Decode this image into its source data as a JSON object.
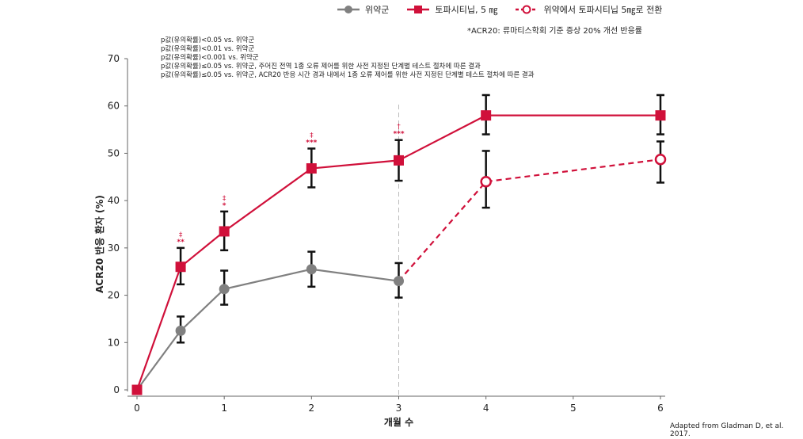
{
  "legend": {
    "placebo": "위약군",
    "tofa": "토파시티닙, 5 ㎎",
    "switch": "위약에서 토파시티닙 5㎎로 전환"
  },
  "acr_note": "*ACR20: 류마티스학회 기준 증상 20% 개선 반응률",
  "footnotes": [
    "p값(유의확률)<0.05 vs. 위약군",
    "p값(유의확률)<0.01 vs. 위약군",
    "p값(유의확률)<0.001 vs. 위약군",
    "p값(유의확률)≤0.05 vs. 위약군, 주어진 전역 1종 오류 제어를 위한 사전 지정된 단계별 테스트 절차에 따른 결과",
    "p값(유의확률)≤0.05 vs. 위약군, ACR20 반응 시간 경과 내에서 1종 오류 제어를 위한 사전 지정된 단계별 테스트 절차에 따른 결과"
  ],
  "source": "Adapted from Gladman  D,  et al. 2017.",
  "chart_data": {
    "type": "line",
    "xlabel": "개월 수",
    "ylabel": "ACR20 반응 환자 (%)",
    "xlim": [
      0,
      6
    ],
    "ylim": [
      0,
      70
    ],
    "xticks": [
      0,
      1,
      2,
      3,
      4,
      5,
      6
    ],
    "yticks": [
      0,
      10,
      20,
      30,
      40,
      50,
      60,
      70
    ],
    "series": [
      {
        "name": "위약군",
        "color": "#808080",
        "marker": "circle",
        "x": [
          0,
          0.5,
          1,
          2,
          3
        ],
        "y": [
          0,
          12.5,
          21.3,
          25.5,
          23.0
        ],
        "err_low": [
          0,
          10.0,
          18.0,
          21.8,
          19.5
        ],
        "err_high": [
          0,
          15.5,
          25.2,
          29.2,
          26.8
        ]
      },
      {
        "name": "토파시티닙, 5 ㎎",
        "color": "#d0103a",
        "marker": "square",
        "x": [
          0,
          0.5,
          1,
          2,
          3,
          4,
          6
        ],
        "y": [
          0,
          26.0,
          33.5,
          46.8,
          48.5,
          58.0,
          58.0
        ],
        "err_low": [
          0,
          22.3,
          29.5,
          42.8,
          44.2,
          54.0,
          54.0
        ],
        "err_high": [
          0,
          30.0,
          37.7,
          51.0,
          52.8,
          62.3,
          62.3
        ]
      },
      {
        "name": "위약에서 토파시티닙 5㎎로 전환",
        "color": "#d0103a",
        "marker": "open-circle",
        "dashed": true,
        "x": [
          3,
          4,
          6
        ],
        "y": [
          23.0,
          44.0,
          48.7
        ],
        "err_low": [
          23.0,
          38.5,
          43.8
        ],
        "err_high": [
          23.0,
          50.5,
          52.5
        ]
      }
    ],
    "annotations": [
      {
        "x": 0.5,
        "y_above": 30.0,
        "symbols": [
          "‡",
          "**"
        ]
      },
      {
        "x": 1,
        "y_above": 37.7,
        "symbols": [
          "‡",
          "*"
        ]
      },
      {
        "x": 2,
        "y_above": 51.0,
        "symbols": [
          "‡",
          "***"
        ]
      },
      {
        "x": 3,
        "y_above": 52.8,
        "symbols": [
          "†",
          "***"
        ]
      }
    ],
    "vline_x": 3
  }
}
